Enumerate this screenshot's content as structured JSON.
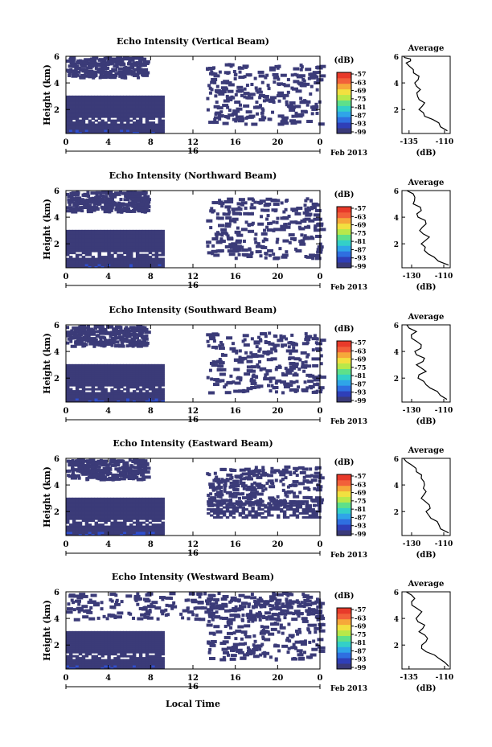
{
  "chart_data": [
    {
      "type": "heatmap",
      "title": "Echo Intensity (Vertical Beam)",
      "ylabel": "Height (km)",
      "xticks": [
        "0",
        "4",
        "8",
        "12",
        "16",
        "20",
        "0"
      ],
      "day_label": "16",
      "date_label": "Feb 2013",
      "ylim_km": [
        0.2,
        6.0
      ],
      "yticks": [
        "2",
        "4",
        "6"
      ],
      "colorbar": {
        "unit": "(dB)",
        "ticks": [
          "-57",
          "-63",
          "-69",
          "-75",
          "-81",
          "-87",
          "-93",
          "-99"
        ]
      },
      "avg": {
        "title": "Average",
        "xlabel": "(dB)",
        "xticks": [
          "-135",
          "-110"
        ],
        "xlim": [
          -140,
          -106
        ],
        "yticks": [
          "2",
          "4",
          "6"
        ]
      }
    },
    {
      "type": "heatmap",
      "title": "Echo Intensity (Northward Beam)",
      "ylabel": "Height (km)",
      "xticks": [
        "0",
        "4",
        "8",
        "12",
        "16",
        "20",
        "0"
      ],
      "day_label": "16",
      "date_label": "Feb 2013",
      "ylim_km": [
        0.2,
        6.0
      ],
      "yticks": [
        "2",
        "4",
        "6"
      ],
      "colorbar": {
        "unit": "(dB)",
        "ticks": [
          "-57",
          "-63",
          "-69",
          "-75",
          "-81",
          "-87",
          "-93",
          "-99"
        ]
      },
      "avg": {
        "title": "Average",
        "xlabel": "(dB)",
        "xticks": [
          "-130",
          "-110"
        ],
        "xlim": [
          -136,
          -106
        ],
        "yticks": [
          "2",
          "4",
          "6"
        ]
      }
    },
    {
      "type": "heatmap",
      "title": "Echo Intensity (Southward Beam)",
      "ylabel": "Height (km)",
      "xticks": [
        "0",
        "4",
        "8",
        "12",
        "16",
        "20",
        "0"
      ],
      "day_label": "16",
      "date_label": "Feb 2013",
      "ylim_km": [
        0.2,
        6.0
      ],
      "yticks": [
        "2",
        "4",
        "6"
      ],
      "colorbar": {
        "unit": "(dB)",
        "ticks": [
          "-57",
          "-63",
          "-69",
          "-75",
          "-81",
          "-87",
          "-93",
          "-99"
        ]
      },
      "avg": {
        "title": "Average",
        "xlabel": "(dB)",
        "xticks": [
          "-130",
          "-110"
        ],
        "xlim": [
          -136,
          -106
        ],
        "yticks": [
          "2",
          "4",
          "6"
        ]
      }
    },
    {
      "type": "heatmap",
      "title": "Echo Intensity (Eastward Beam)",
      "ylabel": "Height (km)",
      "xticks": [
        "0",
        "4",
        "8",
        "12",
        "16",
        "20",
        "0"
      ],
      "day_label": "16",
      "date_label": "Feb 2013",
      "ylim_km": [
        0.2,
        6.0
      ],
      "yticks": [
        "2",
        "4",
        "6"
      ],
      "colorbar": {
        "unit": "(dB)",
        "ticks": [
          "-57",
          "-63",
          "-69",
          "-75",
          "-81",
          "-87",
          "-93",
          "-99"
        ]
      },
      "avg": {
        "title": "Average",
        "xlabel": "(dB)",
        "xticks": [
          "-130",
          "-110"
        ],
        "xlim": [
          -136,
          -106
        ],
        "yticks": [
          "2",
          "4",
          "6"
        ]
      }
    },
    {
      "type": "heatmap",
      "title": "Echo Intensity (Westward Beam)",
      "ylabel": "Height (km)",
      "xticks": [
        "0",
        "4",
        "8",
        "12",
        "16",
        "20",
        "0"
      ],
      "day_label": "16",
      "date_label": "Feb 2013",
      "xlabel": "Local Time",
      "ylim_km": [
        0.2,
        6.0
      ],
      "yticks": [
        "2",
        "4",
        "6"
      ],
      "colorbar": {
        "unit": "(dB)",
        "ticks": [
          "-57",
          "-63",
          "-69",
          "-75",
          "-81",
          "-87",
          "-93",
          "-99"
        ]
      },
      "avg": {
        "title": "Average",
        "xlabel": "(dB)",
        "xticks": [
          "-135",
          "-110"
        ],
        "xlim": [
          -140,
          -106
        ],
        "yticks": [
          "2",
          "4",
          "6"
        ]
      }
    }
  ],
  "colors": {
    "colormap": [
      "#3a3a7a",
      "#2f3fb8",
      "#2f6fe0",
      "#2fa5e8",
      "#33d0c8",
      "#5ee08a",
      "#b8e84a",
      "#f2e040",
      "#f6a83a",
      "#f2603a",
      "#e83a2a"
    ],
    "echo": "#3b3b78",
    "echo_strong": "#2f4fd0"
  },
  "echo_regions": [
    {
      "beam": 0,
      "segments": [
        {
          "t": [
            0,
            9.2
          ],
          "h": [
            0.2,
            3.0
          ]
        }
      ],
      "scatter": [
        {
          "t": [
            0,
            7.5
          ],
          "h": [
            4.5,
            6.0
          ]
        },
        {
          "t": [
            13.2,
            24
          ],
          "h": [
            1.0,
            5.5
          ]
        }
      ]
    },
    {
      "beam": 1,
      "segments": [
        {
          "t": [
            0,
            9.2
          ],
          "h": [
            0.2,
            3.0
          ]
        }
      ],
      "scatter": [
        {
          "t": [
            0,
            7.5
          ],
          "h": [
            4.5,
            6.0
          ]
        },
        {
          "t": [
            13.2,
            24
          ],
          "h": [
            1.0,
            5.5
          ]
        }
      ]
    },
    {
      "beam": 2,
      "segments": [
        {
          "t": [
            0,
            9.2
          ],
          "h": [
            0.2,
            3.0
          ]
        }
      ],
      "scatter": [
        {
          "t": [
            0,
            7.5
          ],
          "h": [
            4.5,
            6.0
          ]
        },
        {
          "t": [
            13.2,
            24
          ],
          "h": [
            1.0,
            5.5
          ]
        }
      ]
    },
    {
      "beam": 3,
      "segments": [
        {
          "t": [
            0,
            9.2
          ],
          "h": [
            0.2,
            3.0
          ]
        },
        {
          "t": [
            13.3,
            24
          ],
          "h": [
            1.5,
            2.8
          ]
        }
      ],
      "scatter": [
        {
          "t": [
            0,
            7.5
          ],
          "h": [
            4.5,
            6.0
          ]
        },
        {
          "t": [
            13.2,
            24
          ],
          "h": [
            2.5,
            5.5
          ]
        }
      ]
    },
    {
      "beam": 4,
      "segments": [
        {
          "t": [
            0,
            9.2
          ],
          "h": [
            0.2,
            3.0
          ]
        }
      ],
      "scatter": [
        {
          "t": [
            0,
            24
          ],
          "h": [
            4.0,
            6.0
          ]
        },
        {
          "t": [
            13.2,
            24
          ],
          "h": [
            1.0,
            5.5
          ]
        }
      ]
    }
  ],
  "avg_profiles": [
    {
      "beam": 0,
      "h": [
        0.4,
        1.0,
        1.5,
        2.0,
        2.5,
        3.0,
        3.5,
        4.0,
        4.5,
        5.0,
        5.5,
        5.8,
        6.0
      ],
      "db": [
        -108,
        -114,
        -124,
        -128,
        -124,
        -129,
        -127,
        -131,
        -128,
        -132,
        -137,
        -134,
        -139
      ]
    },
    {
      "beam": 1,
      "h": [
        0.4,
        1.0,
        1.5,
        2.0,
        2.5,
        3.0,
        3.5,
        4.0,
        4.5,
        5.0,
        5.5,
        6.0
      ],
      "db": [
        -107,
        -116,
        -122,
        -124,
        -119,
        -125,
        -121,
        -126,
        -124,
        -129,
        -128,
        -133
      ]
    },
    {
      "beam": 2,
      "h": [
        0.4,
        1.0,
        1.5,
        2.0,
        2.5,
        3.0,
        3.5,
        4.0,
        4.5,
        5.0,
        5.5,
        6.0
      ],
      "db": [
        -108,
        -114,
        -121,
        -126,
        -121,
        -127,
        -122,
        -128,
        -124,
        -130,
        -127,
        -133
      ]
    },
    {
      "beam": 3,
      "h": [
        0.4,
        1.0,
        1.5,
        2.0,
        2.5,
        3.0,
        3.5,
        4.0,
        4.5,
        5.0,
        5.5,
        6.0
      ],
      "db": [
        -107,
        -113,
        -118,
        -121,
        -119,
        -124,
        -121,
        -122,
        -124,
        -127,
        -130,
        -135
      ]
    },
    {
      "beam": 4,
      "h": [
        0.4,
        1.0,
        1.5,
        2.0,
        2.5,
        3.0,
        3.5,
        4.0,
        4.5,
        5.0,
        5.5,
        6.0
      ],
      "db": [
        -107,
        -114,
        -123,
        -126,
        -122,
        -128,
        -124,
        -130,
        -126,
        -133,
        -131,
        -137
      ]
    }
  ]
}
